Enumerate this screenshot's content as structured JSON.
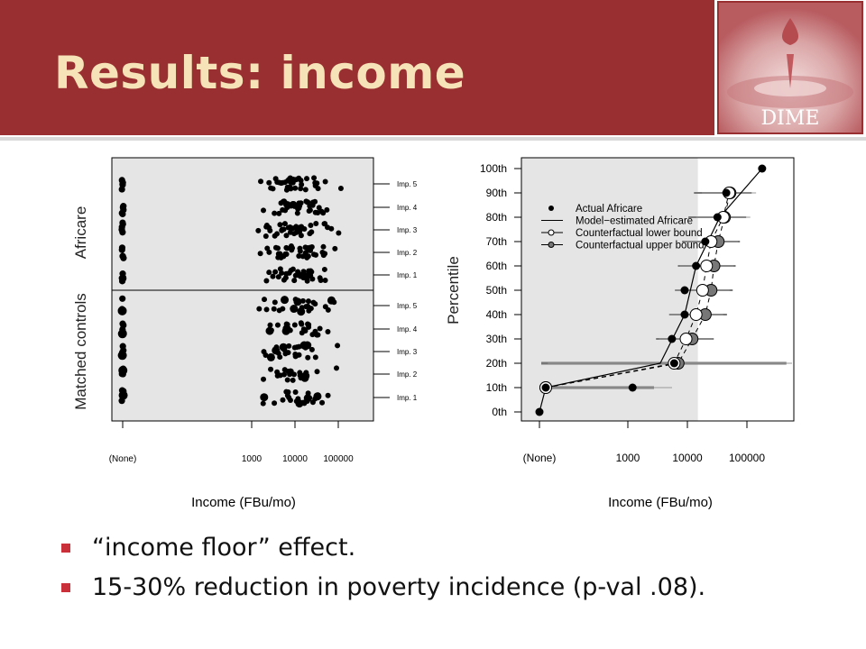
{
  "slide": {
    "title": "Results: income",
    "colors": {
      "header_bg": "#9a2f31",
      "title_text": "#f6e3b8",
      "bullet_marker": "#c9303a"
    }
  },
  "logo": {
    "text": "DIME",
    "icon": "water-drop-splash-icon"
  },
  "bullets": [
    {
      "text": "“income floor” effect."
    },
    {
      "text": "15-30% reduction in poverty incidence (p-val .08)."
    }
  ],
  "chart_data": [
    {
      "type": "scatter",
      "xlabel": "Income (FBu/mo)",
      "x_scale": "log",
      "x_ticks": [
        "(None)",
        "1000",
        "10000",
        "100000"
      ],
      "ylabel_top": "Africare",
      "ylabel_bottom": "Matched controls",
      "imputation_labels": [
        "Imp. 5",
        "Imp. 4",
        "Imp. 3",
        "Imp. 2",
        "Imp. 1"
      ],
      "panels": [
        {
          "name": "Africare",
          "rows": [
            "Imp. 5",
            "Imp. 4",
            "Imp. 3",
            "Imp. 2",
            "Imp. 1"
          ]
        },
        {
          "name": "Matched controls",
          "rows": [
            "Imp. 5",
            "Imp. 4",
            "Imp. 3",
            "Imp. 2",
            "Imp. 1"
          ]
        }
      ],
      "background": "#e5e5e5"
    },
    {
      "type": "line",
      "xlabel": "Income (FBu/mo)",
      "ylabel": "Percentile",
      "x_scale": "log",
      "x_ticks": [
        "(None)",
        "1000",
        "10000",
        "100000"
      ],
      "y_ticks": [
        "0th",
        "10th",
        "20th",
        "30th",
        "40th",
        "50th",
        "60th",
        "70th",
        "80th",
        "90th",
        "100th"
      ],
      "legend": {
        "position": "top-left",
        "entries": [
          "Actual Africare",
          "Model−estimated Africare",
          "Counterfactual lower bound",
          "Counterfactual upper bound"
        ]
      },
      "series": [
        {
          "name": "Actual Africare",
          "points": [
            [
              "(None)",
              0
            ],
            [
              1.5,
              10
            ],
            [
              1200,
              10
            ],
            [
              6000,
              20
            ],
            [
              5500,
              30
            ],
            [
              9000,
              40
            ],
            [
              9000,
              50
            ],
            [
              14000,
              60
            ],
            [
              20000,
              70
            ],
            [
              32000,
              80
            ],
            [
              45000,
              90
            ],
            [
              180000,
              100
            ]
          ]
        },
        {
          "name": "Model−estimated Africare",
          "points": [
            [
              "(None)",
              0
            ],
            [
              1.5,
              10
            ],
            [
              3500,
              20
            ],
            [
              9000,
              40
            ],
            [
              14000,
              60
            ],
            [
              35000,
              80
            ],
            [
              180000,
              100
            ]
          ]
        },
        {
          "name": "Counterfactual lower bound",
          "points": [
            [
              1.5,
              10
            ],
            [
              6000,
              20
            ],
            [
              9500,
              30
            ],
            [
              14000,
              40
            ],
            [
              18000,
              50
            ],
            [
              21000,
              60
            ],
            [
              25000,
              70
            ],
            [
              40000,
              80
            ],
            [
              50000,
              90
            ]
          ]
        },
        {
          "name": "Counterfactual upper bound",
          "points": [
            [
              1.5,
              10
            ],
            [
              7000,
              20
            ],
            [
              12000,
              30
            ],
            [
              20000,
              40
            ],
            [
              25000,
              50
            ],
            [
              28000,
              60
            ],
            [
              33000,
              70
            ],
            [
              42000,
              80
            ],
            [
              52000,
              90
            ]
          ]
        }
      ],
      "shaded_region_x_max": 15000,
      "background": "#e5e5e5"
    }
  ]
}
